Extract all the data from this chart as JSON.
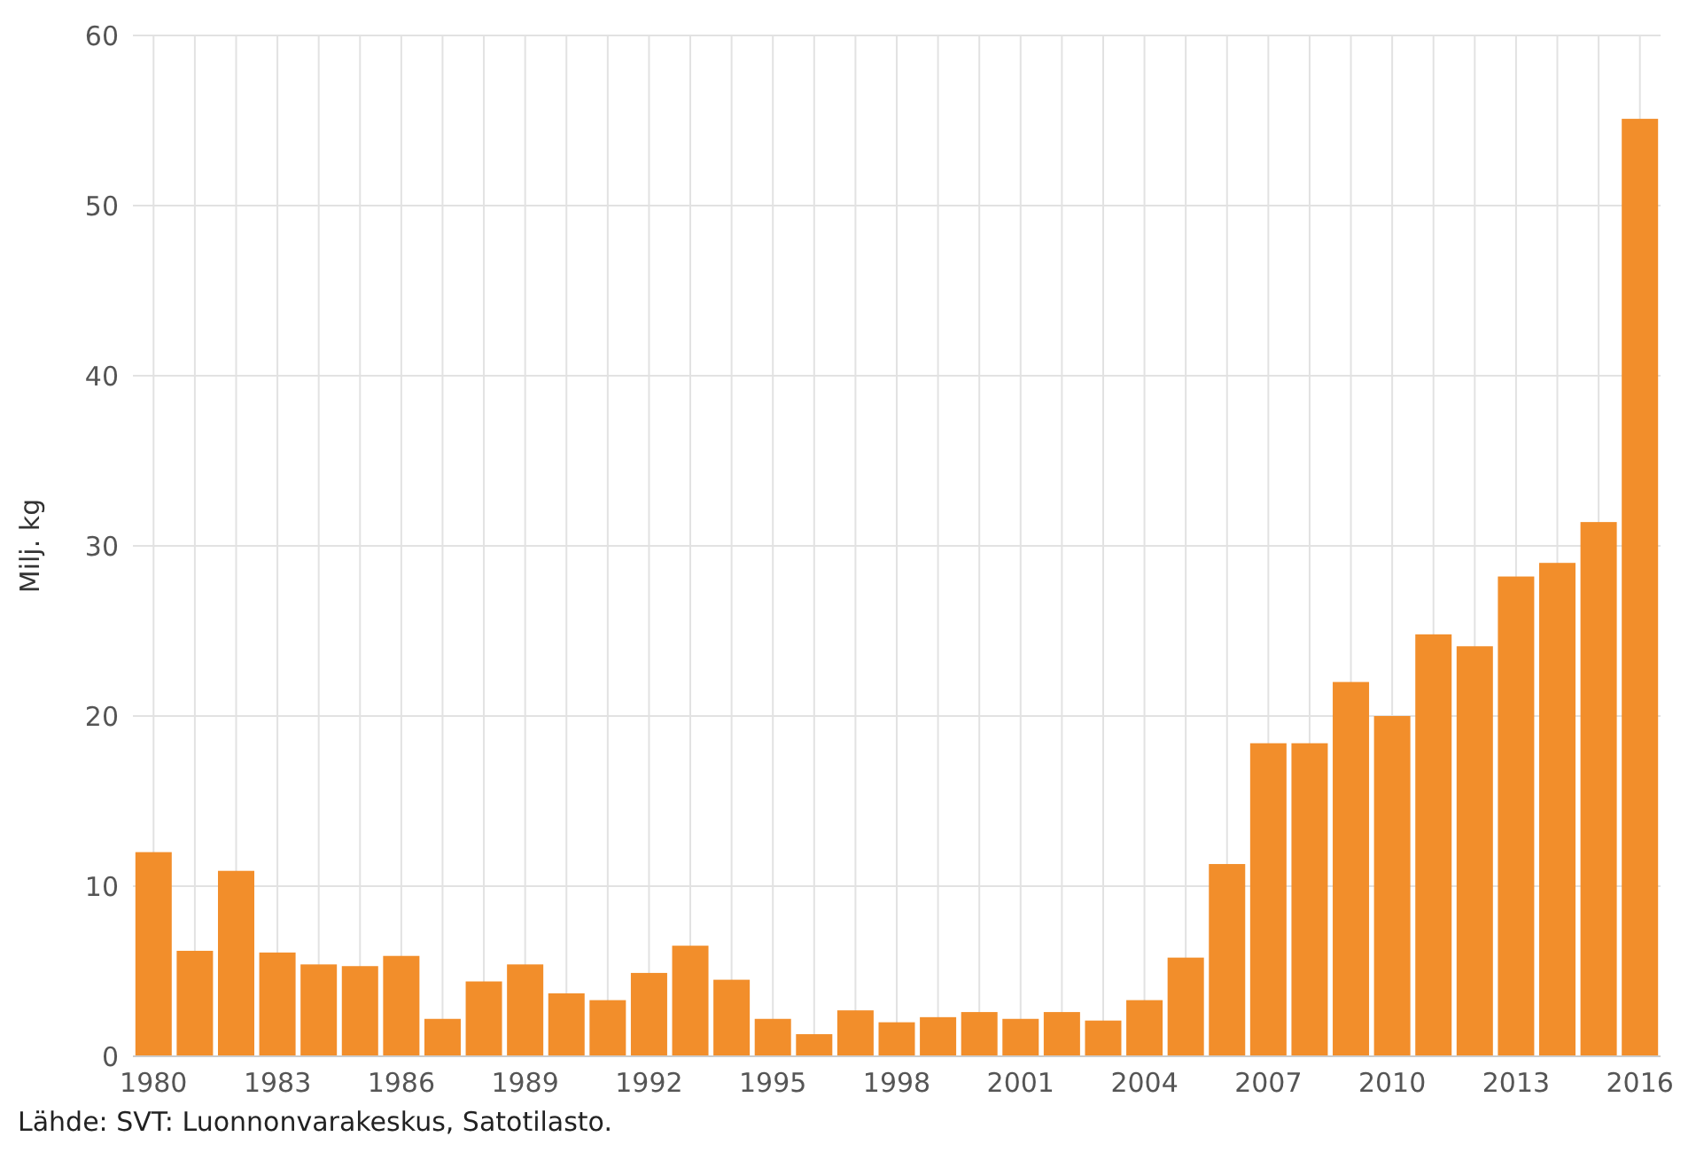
{
  "chart_data": {
    "type": "bar",
    "ylabel": "Milj. kg",
    "categories": [
      "1980",
      null,
      null,
      "1983",
      null,
      null,
      "1986",
      null,
      null,
      "1989",
      null,
      null,
      "1992",
      null,
      null,
      "1995",
      null,
      null,
      "1998",
      null,
      null,
      "2001",
      null,
      null,
      "2004",
      null,
      null,
      "2007",
      null,
      null,
      "2010",
      null,
      null,
      "2013",
      null,
      null,
      "2016"
    ],
    "values": [
      12,
      6.2,
      10.9,
      6.1,
      5.4,
      5.3,
      5.9,
      2.2,
      4.4,
      5.4,
      3.7,
      3.3,
      4.9,
      6.5,
      4.5,
      2.2,
      1.3,
      2.7,
      2.0,
      2.3,
      2.6,
      2.2,
      2.6,
      2.1,
      3.3,
      5.8,
      11.3,
      18.4,
      18.4,
      22,
      20,
      24.8,
      24.1,
      28.2,
      29,
      31.4,
      55.1
    ],
    "color": "#f28e2b",
    "ylim": [
      0,
      60
    ],
    "yticks": [
      0,
      10,
      20,
      30,
      40,
      50,
      60
    ],
    "grid": true,
    "annotations": [
      "Lähde: SVT: Luonnonvarakeskus, Satotilasto."
    ]
  }
}
